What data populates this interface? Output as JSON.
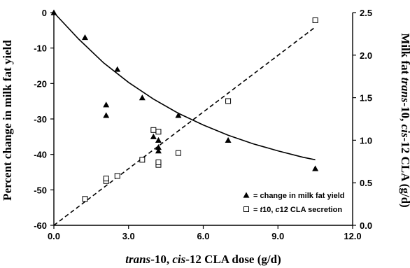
{
  "chart_data": {
    "type": "scatter",
    "xlabel": "trans-10, cis-12 CLA dose (g/d)",
    "xlabel_parts": [
      {
        "text": "trans",
        "italic": true
      },
      {
        "text": "-10, ",
        "italic": false
      },
      {
        "text": "cis",
        "italic": true
      },
      {
        "text": "-12 CLA dose (g/d)",
        "italic": false
      }
    ],
    "ylabel_left": "Percent change in milk fat yield",
    "ylabel_right": "Milk fat trans-10, cis-12 CLA (g/d)",
    "ylabel_right_parts": [
      {
        "text": "Milk fat ",
        "italic": false
      },
      {
        "text": "trans",
        "italic": true
      },
      {
        "text": "-10, ",
        "italic": false
      },
      {
        "text": "cis",
        "italic": true
      },
      {
        "text": "-12 CLA (g/d)",
        "italic": false
      }
    ],
    "xlim": [
      0,
      12
    ],
    "ylim_left": [
      -60,
      0
    ],
    "ylim_right": [
      0,
      2.5
    ],
    "x_ticks": [
      "0.0",
      "3.0",
      "6.0",
      "9.0",
      "12.0"
    ],
    "x_tick_values": [
      0,
      3,
      6,
      9,
      12
    ],
    "y_left_ticks": [
      "0",
      "-10",
      "-20",
      "-30",
      "-40",
      "-50",
      "-60"
    ],
    "y_left_tick_values": [
      0,
      -10,
      -20,
      -30,
      -40,
      -50,
      -60
    ],
    "y_right_ticks": [
      "2.5",
      "2.0",
      "1.5",
      "1.0",
      "0.5",
      "0.0"
    ],
    "y_right_tick_values": [
      2.5,
      2.0,
      1.5,
      1.0,
      0.5,
      0.0
    ],
    "grid": false,
    "legend_position": "bottom-right",
    "series": [
      {
        "name": "= change in milk fat yield",
        "marker": "triangle",
        "axis": "left",
        "color": "#000000",
        "points": [
          [
            0,
            0
          ],
          [
            1.25,
            -7
          ],
          [
            2.1,
            -26
          ],
          [
            2.1,
            -29
          ],
          [
            2.55,
            -16
          ],
          [
            3.55,
            -24
          ],
          [
            4.0,
            -35
          ],
          [
            4.2,
            -36
          ],
          [
            4.2,
            -38
          ],
          [
            4.2,
            -39
          ],
          [
            5.0,
            -29
          ],
          [
            7.0,
            -36
          ],
          [
            10.5,
            -44
          ]
        ]
      },
      {
        "name": "= t10, c12 CLA secretion",
        "name_parts": [
          {
            "text": "= ",
            "italic": false
          },
          {
            "text": "t",
            "italic": true
          },
          {
            "text": "10, ",
            "italic": false
          },
          {
            "text": "c",
            "italic": true
          },
          {
            "text": "12 CLA secretion",
            "italic": false
          }
        ],
        "marker": "square-open",
        "axis": "right",
        "color": "#000000",
        "points": [
          [
            1.25,
            0.31
          ],
          [
            2.1,
            0.52
          ],
          [
            2.1,
            0.55
          ],
          [
            2.55,
            0.58
          ],
          [
            3.55,
            0.77
          ],
          [
            4.0,
            1.12
          ],
          [
            4.2,
            1.1
          ],
          [
            4.2,
            0.71
          ],
          [
            4.2,
            0.74
          ],
          [
            5.0,
            0.85
          ],
          [
            7.0,
            1.46
          ],
          [
            10.5,
            2.41
          ]
        ]
      }
    ],
    "fit_lines": [
      {
        "style": "solid",
        "axis": "left",
        "model": "exponential",
        "points": [
          [
            0,
            0
          ],
          [
            1,
            -7.5
          ],
          [
            2,
            -14.2
          ],
          [
            3,
            -19.7
          ],
          [
            4,
            -24.4
          ],
          [
            5,
            -28.4
          ],
          [
            6,
            -31.7
          ],
          [
            7,
            -34.6
          ],
          [
            8,
            -37.0
          ],
          [
            9,
            -39.0
          ],
          [
            10,
            -40.8
          ],
          [
            10.5,
            -41.5
          ]
        ]
      },
      {
        "style": "dashed",
        "axis": "right",
        "model": "linear",
        "points": [
          [
            0,
            0
          ],
          [
            10.5,
            2.33
          ]
        ]
      }
    ]
  }
}
